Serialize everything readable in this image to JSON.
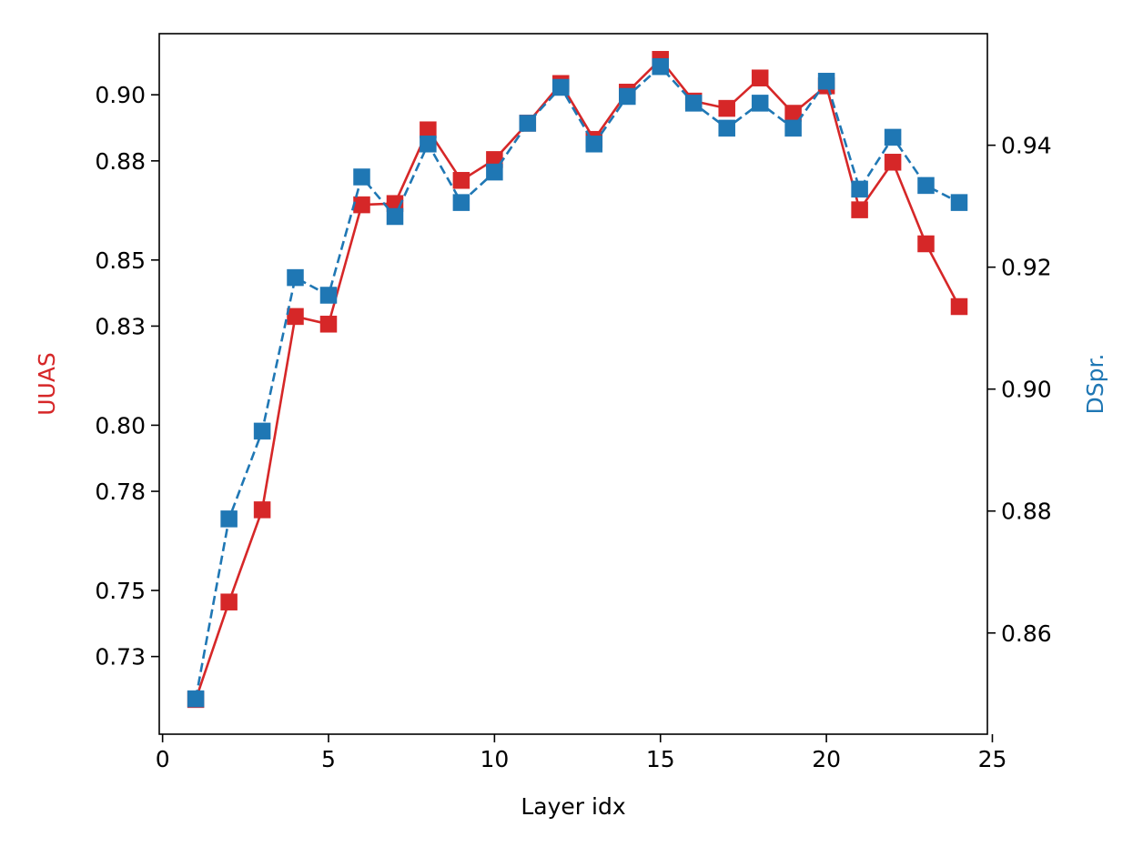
{
  "chart_data": {
    "type": "line",
    "title": "",
    "xlabel": "Layer idx",
    "ylabel_left": "UUAS",
    "ylabel_right": "DSpr.",
    "xlim": [
      -0.1,
      24.85
    ],
    "ylim_left": [
      0.7065,
      0.9185
    ],
    "ylim_right": [
      0.8434,
      0.9583
    ],
    "xticks": [
      0,
      5,
      10,
      15,
      20,
      25
    ],
    "yticks_left": [
      0.73,
      0.75,
      0.78,
      0.8,
      0.83,
      0.85,
      0.88,
      0.9
    ],
    "yticks_left_labels": [
      "0.73",
      "0.75",
      "0.78",
      "0.80",
      "0.83",
      "0.85",
      "0.88",
      "0.90"
    ],
    "yticks_right": [
      0.86,
      0.88,
      0.9,
      0.92,
      0.94
    ],
    "yticks_right_labels": [
      "0.86",
      "0.88",
      "0.90",
      "0.92",
      "0.94"
    ],
    "grid": false,
    "legend": "none",
    "x": [
      1,
      2,
      3,
      4,
      5,
      6,
      7,
      8,
      9,
      10,
      11,
      12,
      13,
      14,
      15,
      16,
      17,
      18,
      19,
      20,
      21,
      22,
      23,
      24
    ],
    "series": [
      {
        "axis": "left",
        "color": "#d62728",
        "linestyle": "solid",
        "marker": "square",
        "values": [
          0.717,
          0.7465,
          0.7744,
          0.8329,
          0.8306,
          0.8667,
          0.8671,
          0.8894,
          0.8741,
          0.8804,
          0.8914,
          0.9034,
          0.8865,
          0.9008,
          0.9107,
          0.8981,
          0.8959,
          0.9051,
          0.8944,
          0.9027,
          0.8652,
          0.8796,
          0.8549,
          0.8359
        ]
      },
      {
        "axis": "right",
        "color": "#1f77b4",
        "linestyle": "dashed",
        "marker": "square",
        "values": [
          0.8492,
          0.8787,
          0.8931,
          0.9183,
          0.9154,
          0.9348,
          0.9283,
          0.9402,
          0.9306,
          0.9356,
          0.9436,
          0.9495,
          0.9402,
          0.948,
          0.9529,
          0.9469,
          0.9428,
          0.9469,
          0.9428,
          0.9505,
          0.9328,
          0.9413,
          0.9334,
          0.9306
        ]
      }
    ],
    "colors": {
      "left_axis_label": "#d62728",
      "right_axis_label": "#1f77b4"
    }
  }
}
